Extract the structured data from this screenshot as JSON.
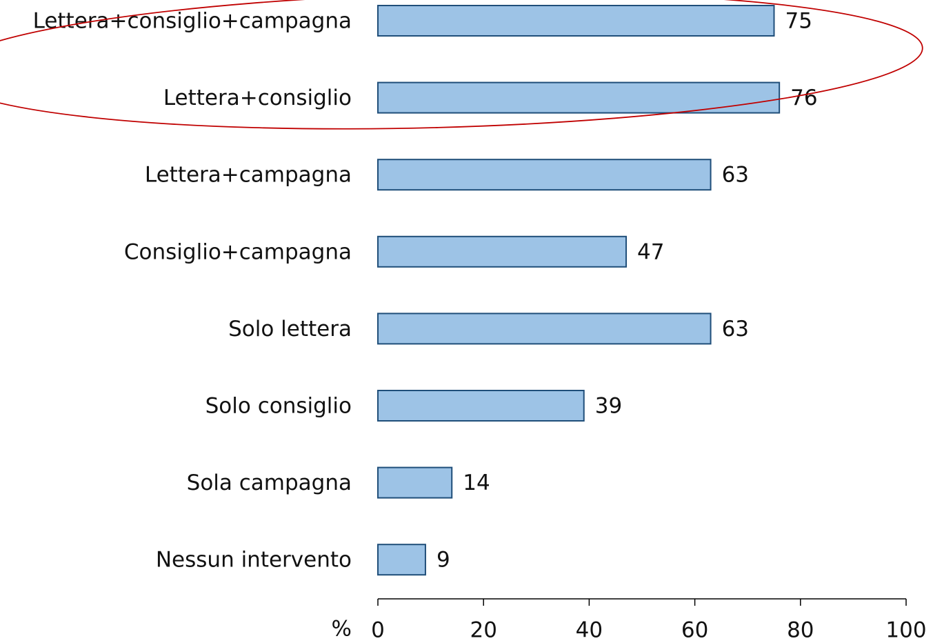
{
  "chart_data": {
    "type": "bar",
    "orientation": "horizontal",
    "categories": [
      "Lettera+consiglio+campagna",
      "Lettera+consiglio",
      "Lettera+campagna",
      "Consiglio+campagna",
      "Solo lettera",
      "Solo consiglio",
      "Sola campagna",
      "Nessun intervento"
    ],
    "values": [
      75,
      76,
      63,
      47,
      63,
      39,
      14,
      9
    ],
    "color": "#9dc3e6",
    "edge_color": "#1f4e79",
    "x_label": "%",
    "xlim": [
      0,
      100
    ],
    "xticks": [
      0,
      20,
      40,
      60,
      80,
      100
    ],
    "grid": false
  }
}
